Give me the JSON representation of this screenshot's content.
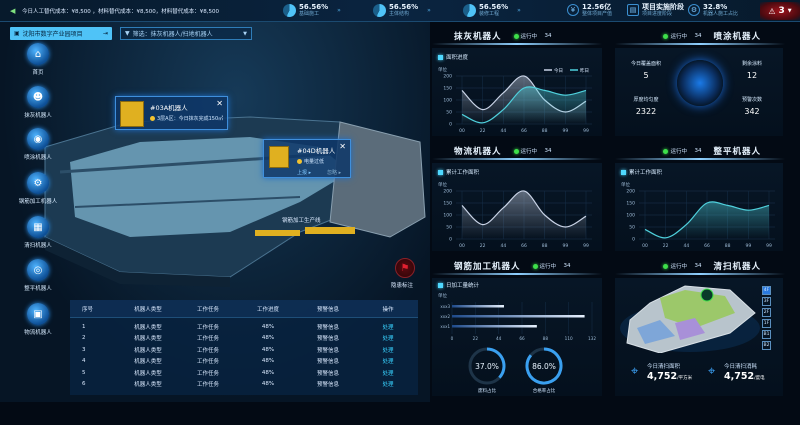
{
  "topbar": {
    "ticker": "今日人工替代成本：¥8,500 ，材料替代成本：¥8,500，材料替代成本：¥8,500",
    "progress": [
      {
        "value": "56.56%",
        "label": "基础施工",
        "pct": 56.56
      },
      {
        "value": "56.56%",
        "label": "主体结构",
        "pct": 56.56
      },
      {
        "value": "56.56%",
        "label": "装修工程",
        "pct": 56.56
      }
    ],
    "stats": [
      {
        "value": "12.56亿",
        "label": "整体项目产值",
        "icon": "coin-icon"
      },
      {
        "value": "项目实施阶段",
        "label": "项目进度阶段",
        "icon": "document-icon"
      },
      {
        "value": "32.8%",
        "label": "机器人施工占比",
        "icon": "robot-arm-icon"
      }
    ],
    "alarm_count": "3"
  },
  "project_button": "沈阳市数字产业园项目",
  "filter": {
    "label": "筛选：抹灰机器人/扫地机器人"
  },
  "nav": [
    {
      "label": "首页",
      "icon": "home-icon"
    },
    {
      "label": "抹灰机器人",
      "icon": "robot-icon"
    },
    {
      "label": "喷涂机器人",
      "icon": "robot-face-icon"
    },
    {
      "label": "钢筋加工机器人",
      "icon": "robot-arm-icon"
    },
    {
      "label": "清扫机器人",
      "icon": "sweeper-icon"
    },
    {
      "label": "整平机器人",
      "icon": "leveler-icon"
    },
    {
      "label": "物流机器人",
      "icon": "logistics-icon"
    }
  ],
  "popups": [
    {
      "title": "#03A机器人",
      "status": "3层A区：今日抹灰完成150㎡"
    },
    {
      "title": "#04D机器人",
      "status": "电量过低",
      "prev": "上报 ▸",
      "next": "忽略 ▸"
    }
  ],
  "scene_label": "钢筋加工生产线",
  "hazard_label": "隐患标注",
  "table": {
    "headers": [
      "序号",
      "机器人类型",
      "工作任务",
      "工作进度",
      "预警信息",
      "操作"
    ],
    "rows": [
      [
        "1",
        "机器人类型",
        "工作任务",
        "48%",
        "预警信息",
        "处理"
      ],
      [
        "2",
        "机器人类型",
        "工作任务",
        "48%",
        "预警信息",
        "处理"
      ],
      [
        "3",
        "机器人类型",
        "工作任务",
        "48%",
        "预警信息",
        "处理"
      ],
      [
        "4",
        "机器人类型",
        "工作任务",
        "48%",
        "预警信息",
        "处理"
      ],
      [
        "5",
        "机器人类型",
        "工作任务",
        "48%",
        "预警信息",
        "处理"
      ],
      [
        "6",
        "机器人类型",
        "工作任务",
        "48%",
        "预警信息",
        "处理"
      ]
    ]
  },
  "running_label": "运行中",
  "running_count": "34",
  "panels": {
    "plaster": "抹灰机器人",
    "spray": "喷涂机器人",
    "logistics": "物流机器人",
    "leveling": "整平机器人",
    "rebar": "钢筋加工机器人",
    "cleaning": "清扫机器人"
  },
  "spray": {
    "stats": [
      {
        "label": "今日覆盖面积",
        "value": "5"
      },
      {
        "label": "剩余涂料",
        "value": "12"
      },
      {
        "label": "厚度均匀度",
        "value": "2322"
      },
      {
        "label": "预警次数",
        "value": "342"
      }
    ]
  },
  "rebar_gauges": [
    {
      "value": "37.0%",
      "label": "废料占比",
      "pct": 37
    },
    {
      "value": "86.0%",
      "label": "合格率占比",
      "pct": 86
    }
  ],
  "cleaning": {
    "floors": [
      "4F",
      "3F",
      "2F",
      "1F",
      "B1",
      "B2"
    ],
    "active_floor": "4F",
    "stats": [
      {
        "label": "今日清扫面积",
        "value": "4,752",
        "unit": "/平方米"
      },
      {
        "label": "今日清扫消耗",
        "value": "4,752",
        "unit": "/度电"
      }
    ]
  },
  "colors": {
    "accent": "#4fc3f7",
    "today": "#c9d3e6",
    "yesterday": "#4fd0dc",
    "running": "#3ee04a",
    "alarm": "#a0141c"
  },
  "chart_data": [
    {
      "type": "area",
      "title": "面积进度",
      "ylabel": "单位",
      "x": [
        "00",
        "22",
        "44",
        "66",
        "88",
        "99",
        "99"
      ],
      "ylim": [
        0,
        200
      ],
      "yticks": [
        0,
        50,
        100,
        150,
        200
      ],
      "grid": true,
      "legend": "top-right",
      "series": [
        {
          "name": "今日",
          "values": [
            140,
            60,
            130,
            200,
            100,
            50,
            95
          ]
        },
        {
          "name": "昨日",
          "values": [
            40,
            5,
            60,
            150,
            140,
            120,
            140
          ]
        }
      ]
    },
    {
      "type": "area",
      "title": "累计工作面积",
      "ylabel": "单位",
      "x": [
        "00",
        "22",
        "44",
        "66",
        "88",
        "99",
        "99"
      ],
      "ylim": [
        0,
        200
      ],
      "yticks": [
        0,
        50,
        100,
        150,
        200
      ],
      "grid": true,
      "series": [
        {
          "values": [
            140,
            60,
            130,
            200,
            100,
            50,
            95
          ]
        }
      ]
    },
    {
      "type": "area",
      "title": "累计工作面积",
      "ylabel": "单位",
      "x": [
        "00",
        "22",
        "44",
        "66",
        "88",
        "99",
        "99"
      ],
      "ylim": [
        0,
        200
      ],
      "yticks": [
        0,
        50,
        100,
        150,
        200
      ],
      "grid": true,
      "series": [
        {
          "values": [
            40,
            5,
            60,
            150,
            140,
            120,
            140
          ]
        }
      ]
    },
    {
      "type": "bar",
      "orientation": "horizontal",
      "title": "日加工量统计",
      "ylabel": "单位",
      "categories": [
        "xxx3",
        "xxx2",
        "xxx1"
      ],
      "values": [
        49,
        125,
        80
      ],
      "xlim": [
        0,
        132
      ],
      "xticks": [
        0,
        22,
        44,
        66,
        88,
        110,
        132
      ],
      "grid": true
    }
  ]
}
